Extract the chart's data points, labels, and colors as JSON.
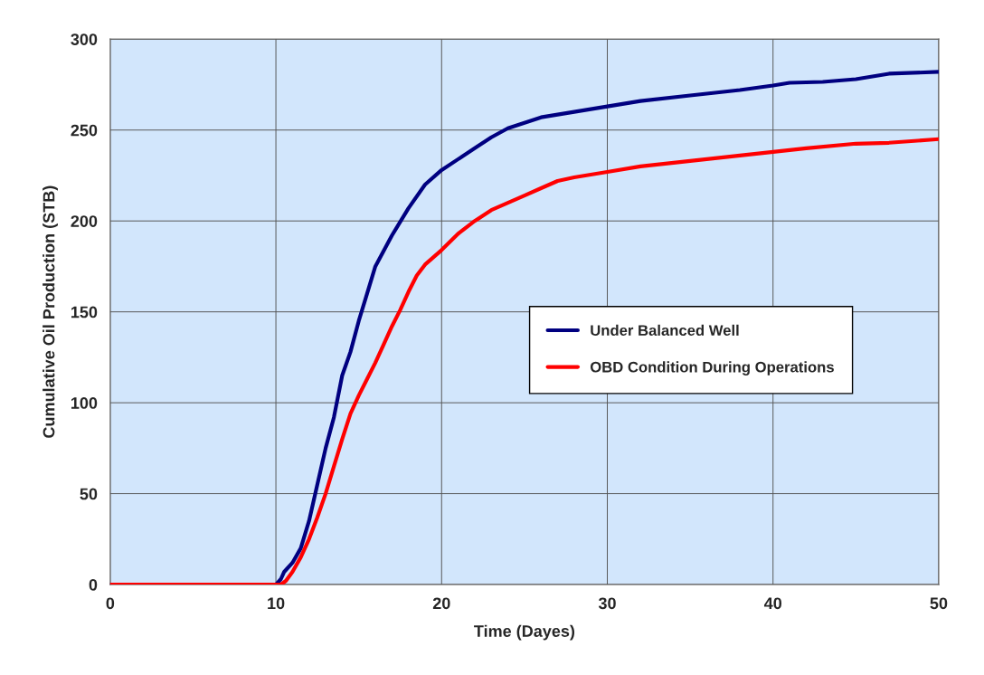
{
  "chart_data": {
    "type": "line",
    "xlabel": "Time (Dayes)",
    "ylabel": "Cumulative Oil Production (STB)",
    "xlim": [
      0,
      50
    ],
    "xticks": [
      0,
      10,
      20,
      30,
      40,
      50
    ],
    "ylim": [
      0,
      300
    ],
    "yticks": [
      0,
      50,
      100,
      150,
      200,
      250,
      300
    ],
    "grid": true,
    "legend": "right",
    "line_style": "solid",
    "marker": "none",
    "series": [
      {
        "name": "Under Balanced Well",
        "color": "#000080",
        "x": [
          0,
          10,
          10.3,
          10.5,
          11,
          11.5,
          12,
          12.5,
          13,
          13.5,
          14,
          14.5,
          15,
          15.5,
          16,
          17,
          18,
          19,
          20,
          21,
          22,
          23,
          24,
          25,
          26,
          28,
          30,
          32,
          35,
          38,
          40,
          41,
          43,
          45,
          47,
          50
        ],
        "values": [
          0,
          0,
          3,
          7,
          12,
          20,
          35,
          55,
          75,
          92,
          115,
          128,
          145,
          160,
          175,
          192,
          207,
          220,
          228,
          234,
          240,
          246,
          251,
          254,
          257,
          260,
          263,
          266,
          269,
          272,
          274.5,
          276,
          276.5,
          278,
          281,
          282
        ]
      },
      {
        "name": "OBD Condition During Operations",
        "color": "#ff0000",
        "x": [
          0,
          10.3,
          10.6,
          11,
          11.5,
          12,
          12.5,
          13,
          13.5,
          14,
          14.5,
          15,
          15.5,
          16,
          16.5,
          17,
          17.5,
          18,
          18.5,
          19,
          20,
          21,
          22,
          23,
          24,
          25,
          26,
          27,
          28,
          30,
          32,
          35,
          38,
          40,
          42,
          45,
          47,
          50
        ],
        "values": [
          0,
          0,
          2,
          7,
          15,
          25,
          37,
          50,
          65,
          80,
          94,
          104,
          113,
          122,
          132,
          142,
          151,
          161,
          170,
          176,
          184,
          193,
          200,
          206,
          210,
          214,
          218,
          222,
          224,
          227,
          230,
          233,
          236,
          238,
          240,
          242.5,
          243,
          245
        ]
      }
    ]
  }
}
